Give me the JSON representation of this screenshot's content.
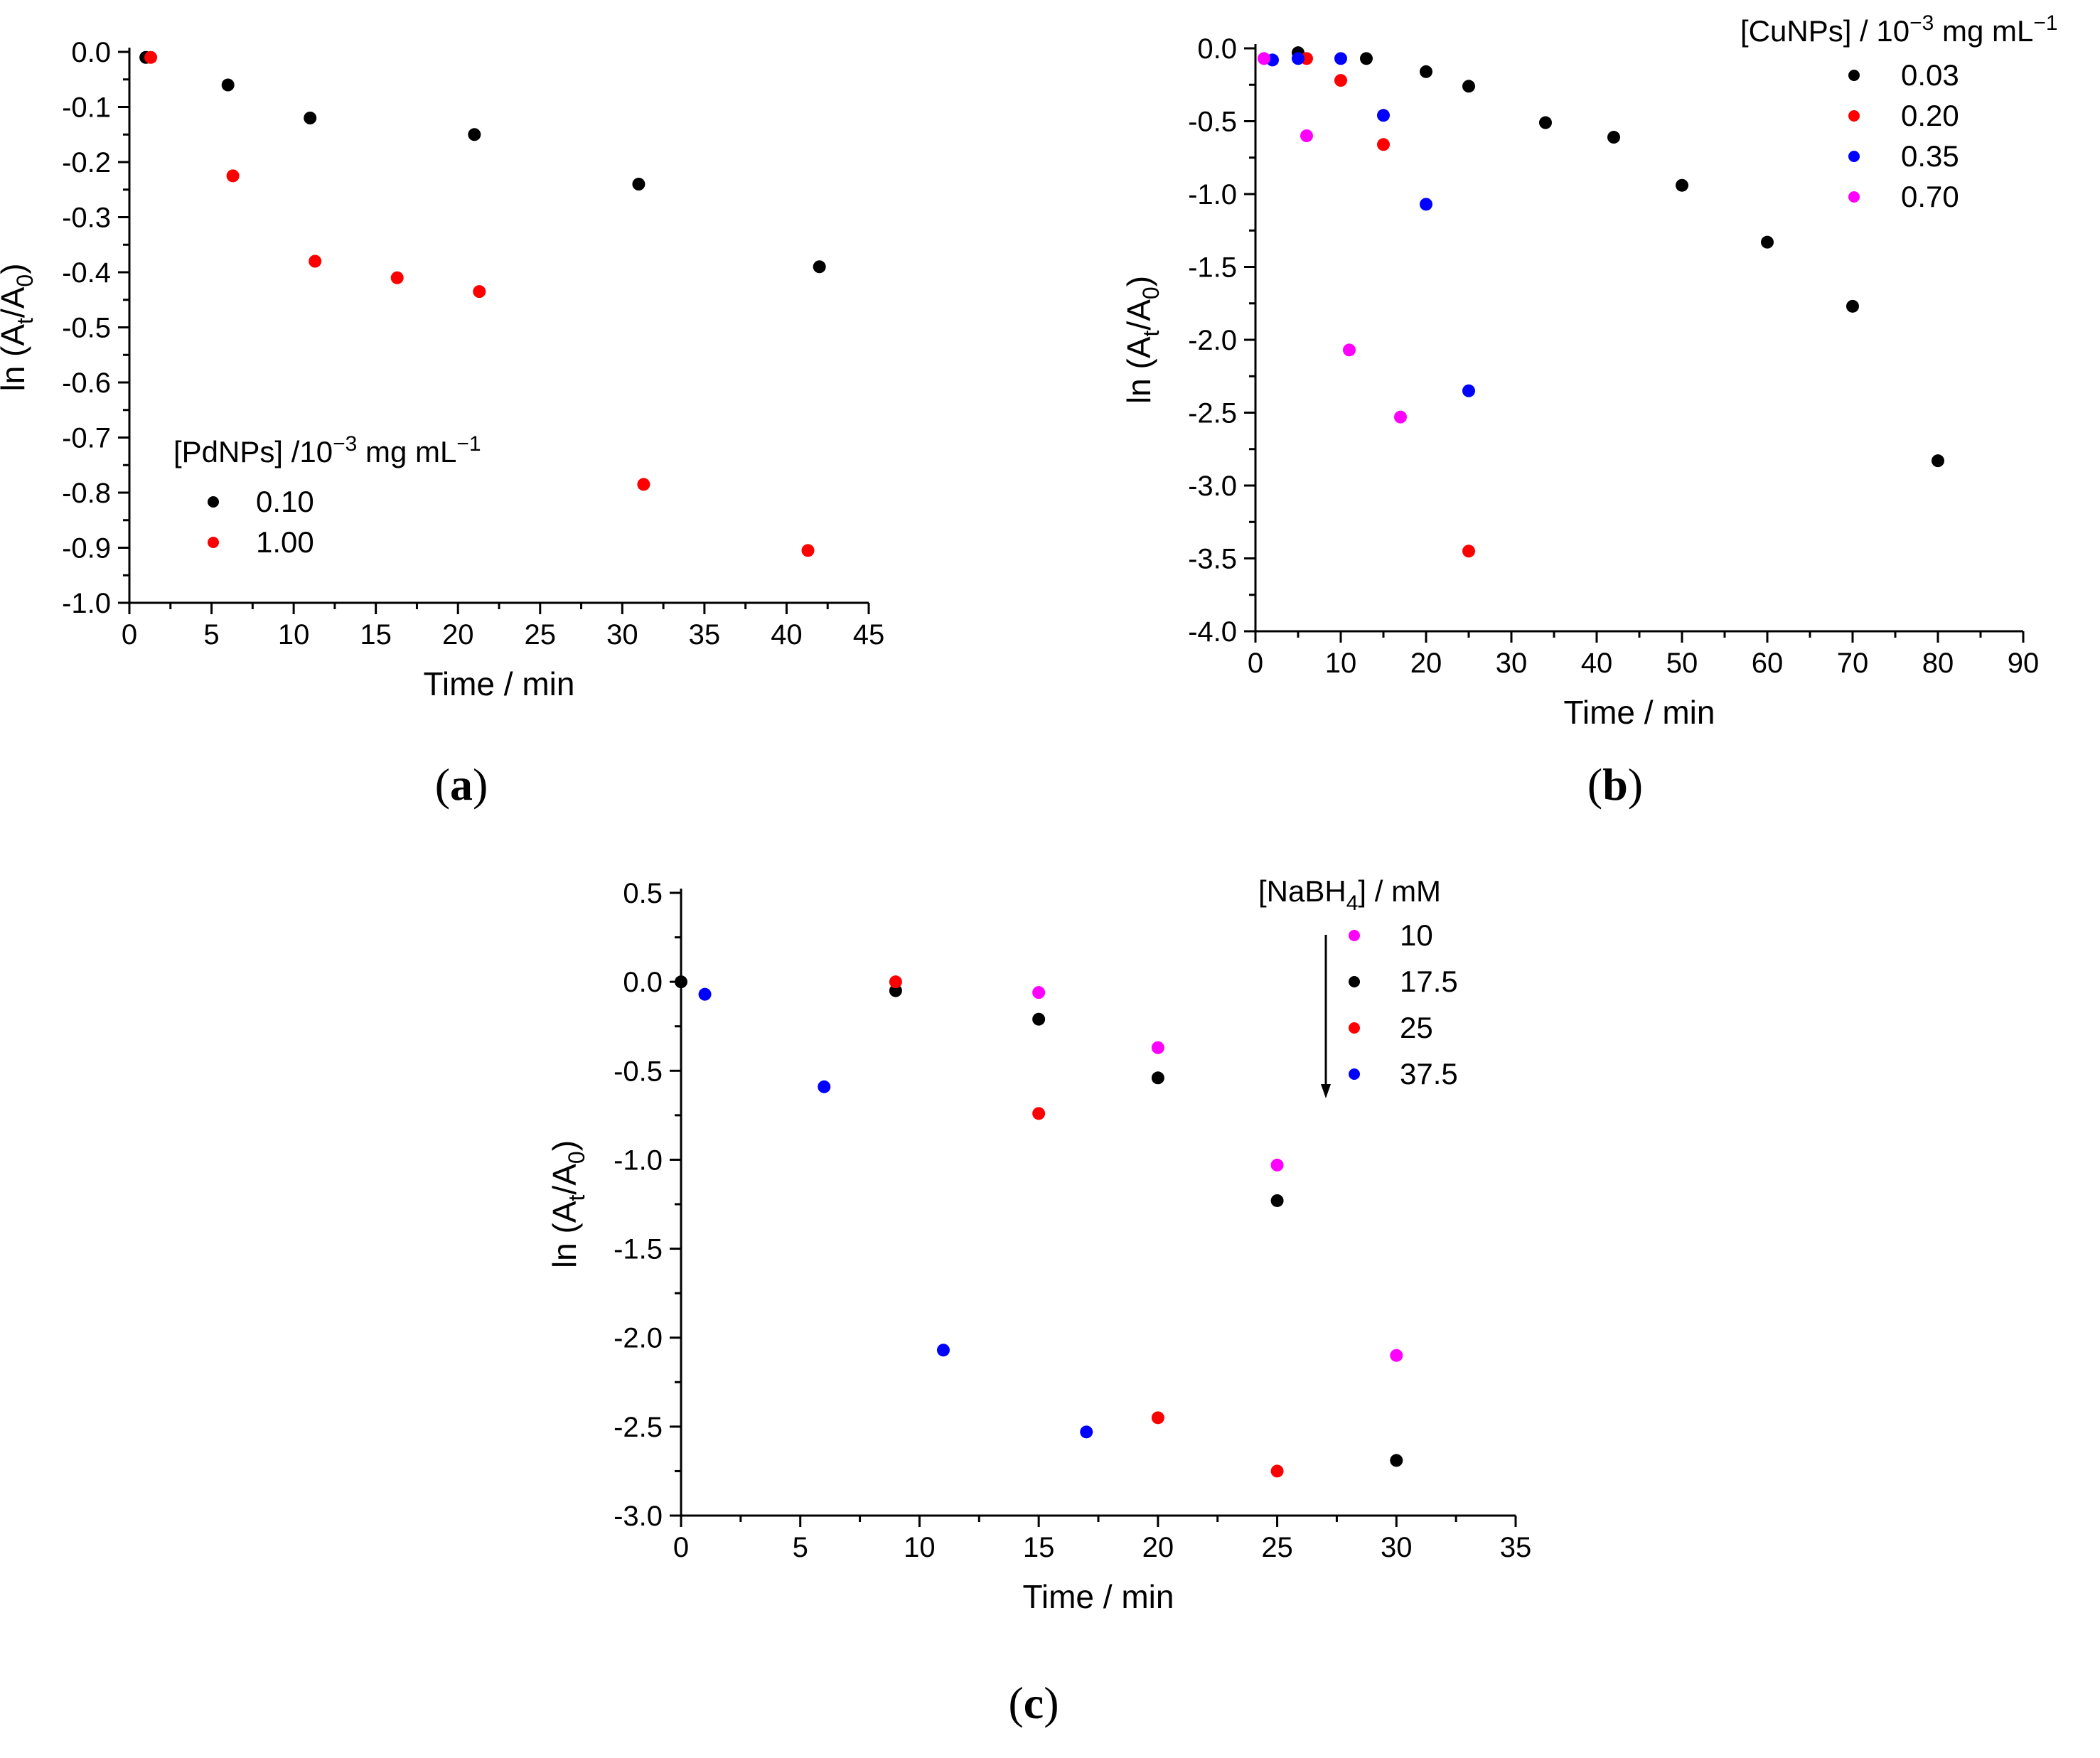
{
  "chart_data": [
    {
      "id": "a",
      "type": "scatter",
      "panel_label": "a",
      "xlabel": "Time / min",
      "ylabel_parts": [
        "ln (A",
        "t",
        "/A",
        "0",
        ")"
      ],
      "xlim": [
        0,
        45
      ],
      "ylim": [
        -1.0,
        0.0
      ],
      "xticks": [
        0,
        5,
        10,
        15,
        20,
        25,
        30,
        35,
        40,
        45
      ],
      "xtick_labels": [
        "0",
        "5",
        "10",
        "15",
        "20",
        "25",
        "30",
        "35",
        "40",
        "45"
      ],
      "yticks": [
        0.0,
        -0.1,
        -0.2,
        -0.3,
        -0.4,
        -0.5,
        -0.6,
        -0.7,
        -0.8,
        -0.9,
        -1.0
      ],
      "ytick_labels": [
        "0.0",
        "-0.1",
        "-0.2",
        "-0.3",
        "-0.4",
        "-0.5",
        "-0.6",
        "-0.7",
        "-0.8",
        "-0.9",
        "-1.0"
      ],
      "legend_title": {
        "pre": "[PdNPs] /10",
        "sup1": "−3",
        "mid": " mg mL",
        "sup2": "−1"
      },
      "legend_position": "lower-left",
      "series": [
        {
          "name": "0.10",
          "color": "#000000",
          "x": [
            1,
            6,
            11,
            21,
            31,
            42
          ],
          "y": [
            -0.01,
            -0.06,
            -0.12,
            -0.15,
            -0.24,
            -0.39
          ]
        },
        {
          "name": "1.00",
          "color": "#ff0000",
          "x": [
            1.3,
            6.3,
            11.3,
            16.3,
            21.3,
            31.3,
            41.3
          ],
          "y": [
            -0.01,
            -0.225,
            -0.38,
            -0.41,
            -0.435,
            -0.785,
            -0.905
          ]
        }
      ]
    },
    {
      "id": "b",
      "type": "scatter",
      "panel_label": "b",
      "xlabel": "Time / min",
      "ylabel_parts": [
        "ln (A",
        "t",
        "/A",
        "0",
        ")"
      ],
      "xlim": [
        0,
        90
      ],
      "ylim": [
        -4.0,
        0.0
      ],
      "xticks": [
        0,
        10,
        20,
        30,
        40,
        50,
        60,
        70,
        80,
        90
      ],
      "xtick_labels": [
        "0",
        "10",
        "20",
        "30",
        "40",
        "50",
        "60",
        "70",
        "80",
        "90"
      ],
      "yticks": [
        0.0,
        -0.5,
        -1.0,
        -1.5,
        -2.0,
        -2.5,
        -3.0,
        -3.5,
        -4.0
      ],
      "ytick_labels": [
        "0.0",
        "-0.5",
        "-1.0",
        "-1.5",
        "-2.0",
        "-2.5",
        "-3.0",
        "-3.5",
        "-4.0"
      ],
      "legend_title": {
        "pre": "[CuNPs] / 10",
        "sup1": "−3",
        "mid": " mg mL",
        "sup2": "−1"
      },
      "legend_position": "top-right",
      "series": [
        {
          "name": "0.03",
          "color": "#000000",
          "x": [
            5,
            13,
            20,
            25,
            34,
            42,
            50,
            60,
            70,
            80
          ],
          "y": [
            -0.03,
            -0.07,
            -0.16,
            -0.26,
            -0.51,
            -0.61,
            -0.94,
            -1.33,
            -1.77,
            -2.83
          ]
        },
        {
          "name": "0.20",
          "color": "#ff0000",
          "x": [
            6,
            10,
            15,
            25
          ],
          "y": [
            -0.07,
            -0.22,
            -0.66,
            -3.45
          ]
        },
        {
          "name": "0.35",
          "color": "#0000ff",
          "x": [
            2,
            5,
            10,
            15,
            20,
            25
          ],
          "y": [
            -0.08,
            -0.07,
            -0.07,
            -0.46,
            -1.07,
            -2.35
          ]
        },
        {
          "name": "0.70",
          "color": "#ff00ff",
          "x": [
            1,
            6,
            11,
            17
          ],
          "y": [
            -0.07,
            -0.6,
            -2.07,
            -2.53
          ]
        }
      ]
    },
    {
      "id": "c",
      "type": "scatter",
      "panel_label": "c",
      "xlabel": "Time / min",
      "ylabel_parts": [
        "ln (A",
        "t",
        "/A",
        "0",
        ")"
      ],
      "xlim": [
        0,
        35
      ],
      "ylim": [
        -3.0,
        0.5
      ],
      "xticks": [
        0,
        5,
        10,
        15,
        20,
        25,
        30,
        35
      ],
      "xtick_labels": [
        "0",
        "5",
        "10",
        "15",
        "20",
        "25",
        "30",
        "35"
      ],
      "yticks": [
        0.5,
        0.0,
        -0.5,
        -1.0,
        -1.5,
        -2.0,
        -2.5,
        -3.0
      ],
      "ytick_labels": [
        "0.5",
        "0.0",
        "-0.5",
        "-1.0",
        "-1.5",
        "-2.0",
        "-2.5",
        "-3.0"
      ],
      "legend_title": {
        "pre": "[NaBH",
        "sub": "4",
        "post": "] / mM"
      },
      "legend_position": "top-right",
      "legend_arrow": true,
      "series": [
        {
          "name": "10",
          "color": "#ff00ff",
          "x": [
            15,
            20,
            25,
            30
          ],
          "y": [
            -0.06,
            -0.37,
            -1.03,
            -2.1
          ]
        },
        {
          "name": "17.5",
          "color": "#000000",
          "x": [
            0,
            9,
            15,
            20,
            25,
            30
          ],
          "y": [
            0.0,
            -0.05,
            -0.21,
            -0.54,
            -1.23,
            -2.69
          ]
        },
        {
          "name": "25",
          "color": "#ff0000",
          "x": [
            9,
            15,
            20,
            25
          ],
          "y": [
            0.0,
            -0.74,
            -2.45,
            -2.75
          ]
        },
        {
          "name": "37.5",
          "color": "#0000ff",
          "x": [
            1,
            6,
            11,
            17
          ],
          "y": [
            -0.07,
            -0.59,
            -2.07,
            -2.53
          ]
        }
      ]
    }
  ]
}
